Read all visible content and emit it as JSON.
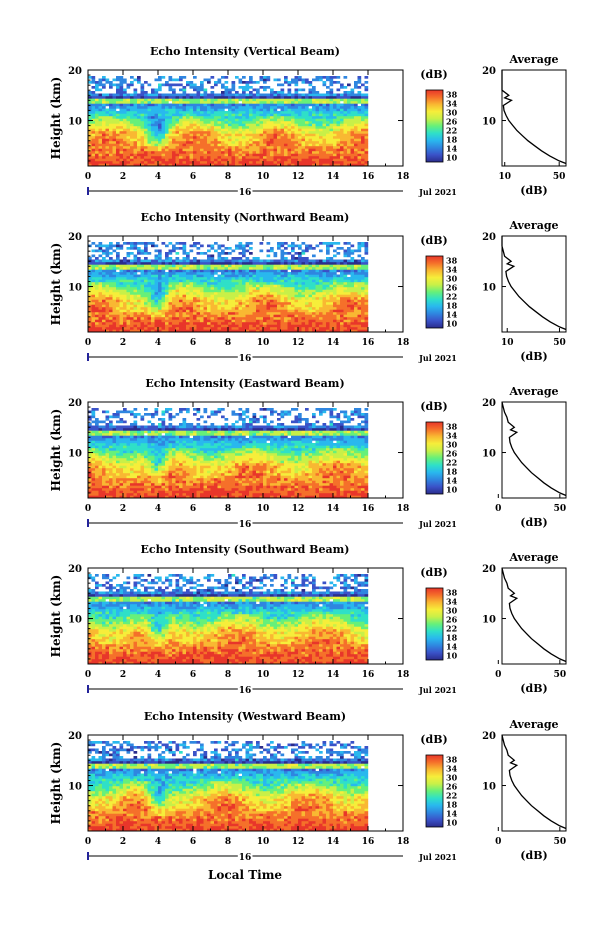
{
  "x_axis_title": "Local Time",
  "panels": [
    {
      "title": "Echo Intensity (Vertical Beam)",
      "avg_title": "Average",
      "avg_ticks": [
        "10",
        "50"
      ],
      "profile_min": 8
    },
    {
      "title": "Echo Intensity (Northward Beam)",
      "avg_title": "Average",
      "avg_ticks": [
        "10",
        "50"
      ],
      "profile_min": 6
    },
    {
      "title": "Echo Intensity (Eastward Beam)",
      "avg_title": "Average",
      "avg_ticks": [
        "0",
        "50"
      ],
      "profile_min": 3
    },
    {
      "title": "Echo Intensity (Southward Beam)",
      "avg_title": "Average",
      "avg_ticks": [
        "0",
        "50"
      ],
      "profile_min": 3
    },
    {
      "title": "Echo Intensity (Westward Beam)",
      "avg_title": "Average",
      "avg_ticks": [
        "0",
        "50"
      ],
      "profile_min": 3
    }
  ],
  "chart_data": {
    "type": "heatmap",
    "x_label": "Local Time",
    "y_label": "Height (km)",
    "x_ticks": [
      "0",
      "2",
      "4",
      "6",
      "8",
      "10",
      "12",
      "14",
      "16",
      "18"
    ],
    "xlim": [
      0,
      18
    ],
    "data_x_end": 16,
    "y_ticks": [
      "10",
      "20"
    ],
    "ylim": [
      1,
      20
    ],
    "date_marker": "16",
    "date_label": "Jul 2021",
    "colorbar": {
      "unit_label": "(dB)",
      "ticks": [
        "38",
        "34",
        "30",
        "26",
        "22",
        "18",
        "14",
        "10"
      ],
      "range": [
        8,
        40
      ],
      "colors": [
        "#2b2c8c",
        "#3a52c8",
        "#2f86e0",
        "#29b8ee",
        "#2fe0c8",
        "#66f07a",
        "#c8f048",
        "#f6ee3a",
        "#f9b832",
        "#f5702a",
        "#e8362a"
      ]
    },
    "features": {
      "bright_layer_km": 14,
      "cloud_top_km": 19,
      "surface_layer_top_km": 6,
      "dip_time_h": 4
    },
    "average_profile": {
      "x_label": "(dB)",
      "ylim": [
        1,
        20
      ],
      "y_ticks": [
        "10",
        "20"
      ],
      "heights_km": [
        1.5,
        2,
        3,
        4,
        5,
        6,
        7,
        8,
        9,
        10,
        11,
        12,
        13,
        14,
        14.5,
        15,
        16,
        17,
        18,
        19,
        20
      ],
      "values_db": [
        55,
        50,
        43,
        37,
        32,
        27,
        23,
        19,
        16,
        13,
        11,
        9.5,
        9,
        15,
        10,
        13,
        8,
        7,
        5,
        4,
        3
      ]
    }
  }
}
